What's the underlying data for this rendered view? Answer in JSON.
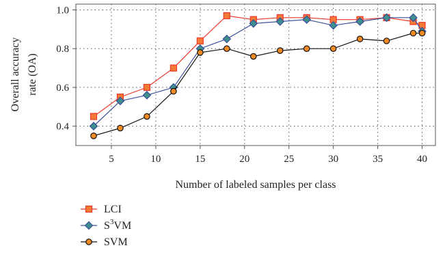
{
  "chart_data": {
    "type": "line",
    "title": "",
    "xlabel": "Number of labeled samples per class",
    "ylabel_lines": [
      "Overall accuracy",
      "rate (OA)"
    ],
    "xlim": [
      1,
      41.5
    ],
    "ylim": [
      0.3,
      1.03
    ],
    "xticks": [
      5,
      10,
      15,
      20,
      25,
      30,
      35,
      40
    ],
    "yticks": [
      0.4,
      0.6,
      0.8,
      1.0
    ],
    "ytick_labels": [
      "0.4",
      "0.6",
      "0.8",
      "1.0"
    ],
    "grid": "dotted",
    "legend_position": "below",
    "x": [
      3,
      6,
      9,
      12,
      15,
      18,
      21,
      24,
      27,
      30,
      33,
      36,
      39,
      40
    ],
    "series": [
      {
        "name": "LCI",
        "marker": "square",
        "color": "#e8392b",
        "fill": "#f47a35",
        "values": [
          0.45,
          0.55,
          0.6,
          0.7,
          0.84,
          0.97,
          0.95,
          0.96,
          0.96,
          0.95,
          0.95,
          0.96,
          0.94,
          0.92
        ]
      },
      {
        "name": "S3VM",
        "name_base": "S",
        "name_sup": "3",
        "name_tail": "VM",
        "marker": "diamond",
        "color": "#3a4f9a",
        "fill": "#3f8f8c",
        "values": [
          0.4,
          0.53,
          0.56,
          0.6,
          0.8,
          0.85,
          0.93,
          0.94,
          0.95,
          0.92,
          0.94,
          0.96,
          0.96,
          0.89
        ]
      },
      {
        "name": "SVM",
        "marker": "circle",
        "color": "#111111",
        "fill": "#f08a24",
        "values": [
          0.35,
          0.39,
          0.45,
          0.58,
          0.78,
          0.8,
          0.76,
          0.79,
          0.8,
          0.8,
          0.85,
          0.84,
          0.88,
          0.88
        ]
      }
    ]
  }
}
